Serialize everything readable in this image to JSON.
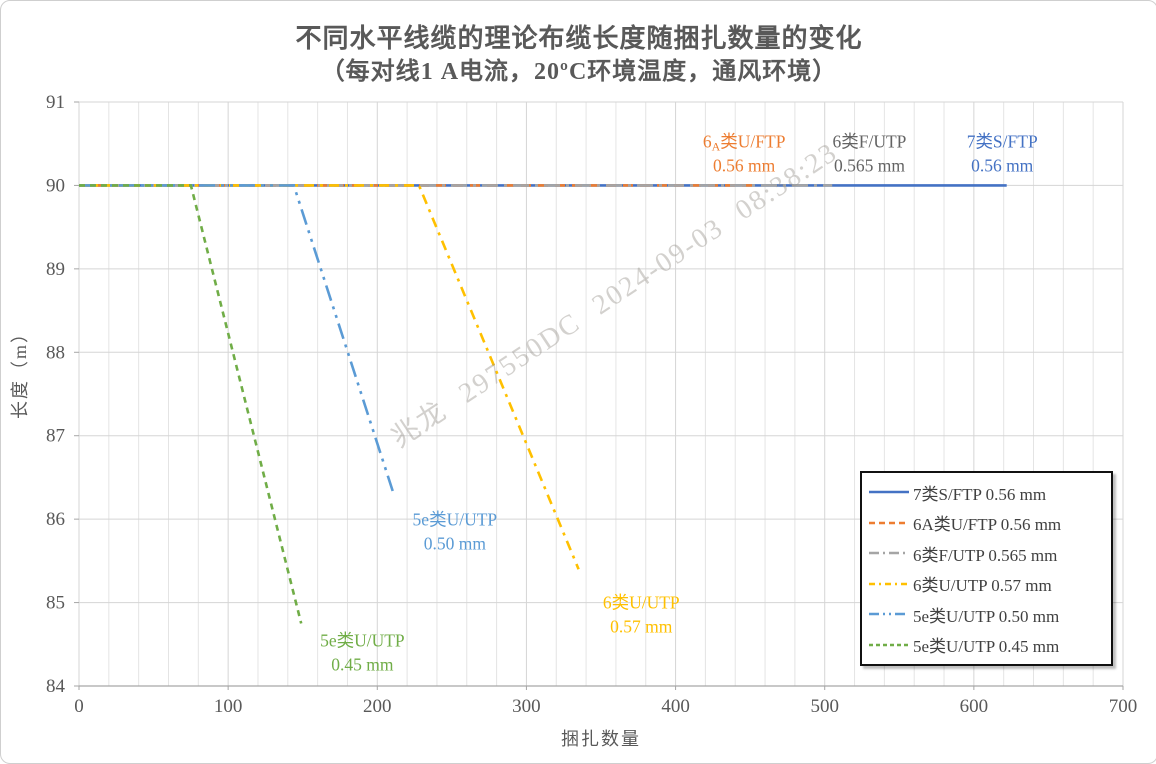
{
  "watermark": {
    "text": "兆龙 297550DC 2024-09-03 08:38:23"
  },
  "chart_data": {
    "type": "line",
    "title": "不同水平线缆的理论布缆长度随捆扎数量的变化",
    "subtitle": "（每对线1 A电流，20ºC环境温度，通风环境）",
    "subtitle_segments": [
      {
        "text": "（每对线",
        "bold": false
      },
      {
        "text": "1 A",
        "bold": true
      },
      {
        "text": "电流，",
        "bold": false
      },
      {
        "text": "20ºC",
        "bold": true
      },
      {
        "text": "环境温度，通风环境）",
        "bold": false
      }
    ],
    "xlabel": "捆扎数量",
    "ylabel": "长度（m）",
    "xlim": [
      0,
      700
    ],
    "ylim": [
      84,
      91
    ],
    "x_ticks": [
      0,
      100,
      200,
      300,
      400,
      500,
      600,
      700
    ],
    "y_ticks": [
      84,
      85,
      86,
      87,
      88,
      89,
      90,
      91
    ],
    "x_minor_step": 20,
    "grid": true,
    "legend_position": "bottom-right",
    "series": [
      {
        "name": "7类S/FTP 0.56 mm",
        "color": "#4472C4",
        "dash": "solid",
        "points": [
          [
            0,
            90
          ],
          [
            622,
            90
          ]
        ]
      },
      {
        "name": "6A类U/FTP 0.56 mm",
        "color": "#ED7D31",
        "dash": "dash",
        "points": [
          [
            0,
            90
          ],
          [
            453,
            90
          ]
        ]
      },
      {
        "name": "6类F/UTP 0.565 mm",
        "color": "#A5A5A5",
        "dash": "longdashdot",
        "points": [
          [
            0,
            90
          ],
          [
            505,
            90
          ]
        ]
      },
      {
        "name": "6类U/UTP 0.57 mm",
        "color": "#FFC000",
        "dash": "dashdot",
        "points": [
          [
            0,
            90
          ],
          [
            228,
            90
          ],
          [
            335,
            85.4
          ]
        ]
      },
      {
        "name": "5e类U/UTP 0.50 mm",
        "color": "#5B9BD5",
        "dash": "longdashdotdot",
        "points": [
          [
            0,
            90
          ],
          [
            144,
            90
          ],
          [
            211,
            86.3
          ]
        ]
      },
      {
        "name": "5e类U/UTP 0.45 mm",
        "color": "#70AD47",
        "dash": "shortdash",
        "points": [
          [
            0,
            90
          ],
          [
            75,
            90
          ],
          [
            149,
            84.75
          ]
        ]
      }
    ],
    "annotations": [
      {
        "lines": [
          "6[A]类U/FTP",
          "0.56 mm"
        ],
        "x": 446,
        "y": 90.38,
        "color": "#ED7D31"
      },
      {
        "lines": [
          "6类F/UTP",
          "0.565 mm"
        ],
        "x": 530,
        "y": 90.38,
        "color": "#636363"
      },
      {
        "lines": [
          "7类S/FTP",
          "0.56 mm"
        ],
        "x": 619,
        "y": 90.38,
        "color": "#4472C4"
      },
      {
        "lines": [
          "5e类U/UTP",
          "0.50 mm"
        ],
        "x": 252,
        "y": 85.85,
        "color": "#5B9BD5"
      },
      {
        "lines": [
          "6类U/UTP",
          "0.57 mm"
        ],
        "x": 377,
        "y": 84.86,
        "color": "#FFC000"
      },
      {
        "lines": [
          "5e类U/UTP",
          "0.45 mm"
        ],
        "x": 190,
        "y": 84.4,
        "color": "#70AD47"
      }
    ],
    "colors": {
      "axis_text": "#595959",
      "gridline_major": "#D5D5D5",
      "gridline_minor": "#E4E4E4",
      "axis_line": "#A6A6A6"
    }
  }
}
